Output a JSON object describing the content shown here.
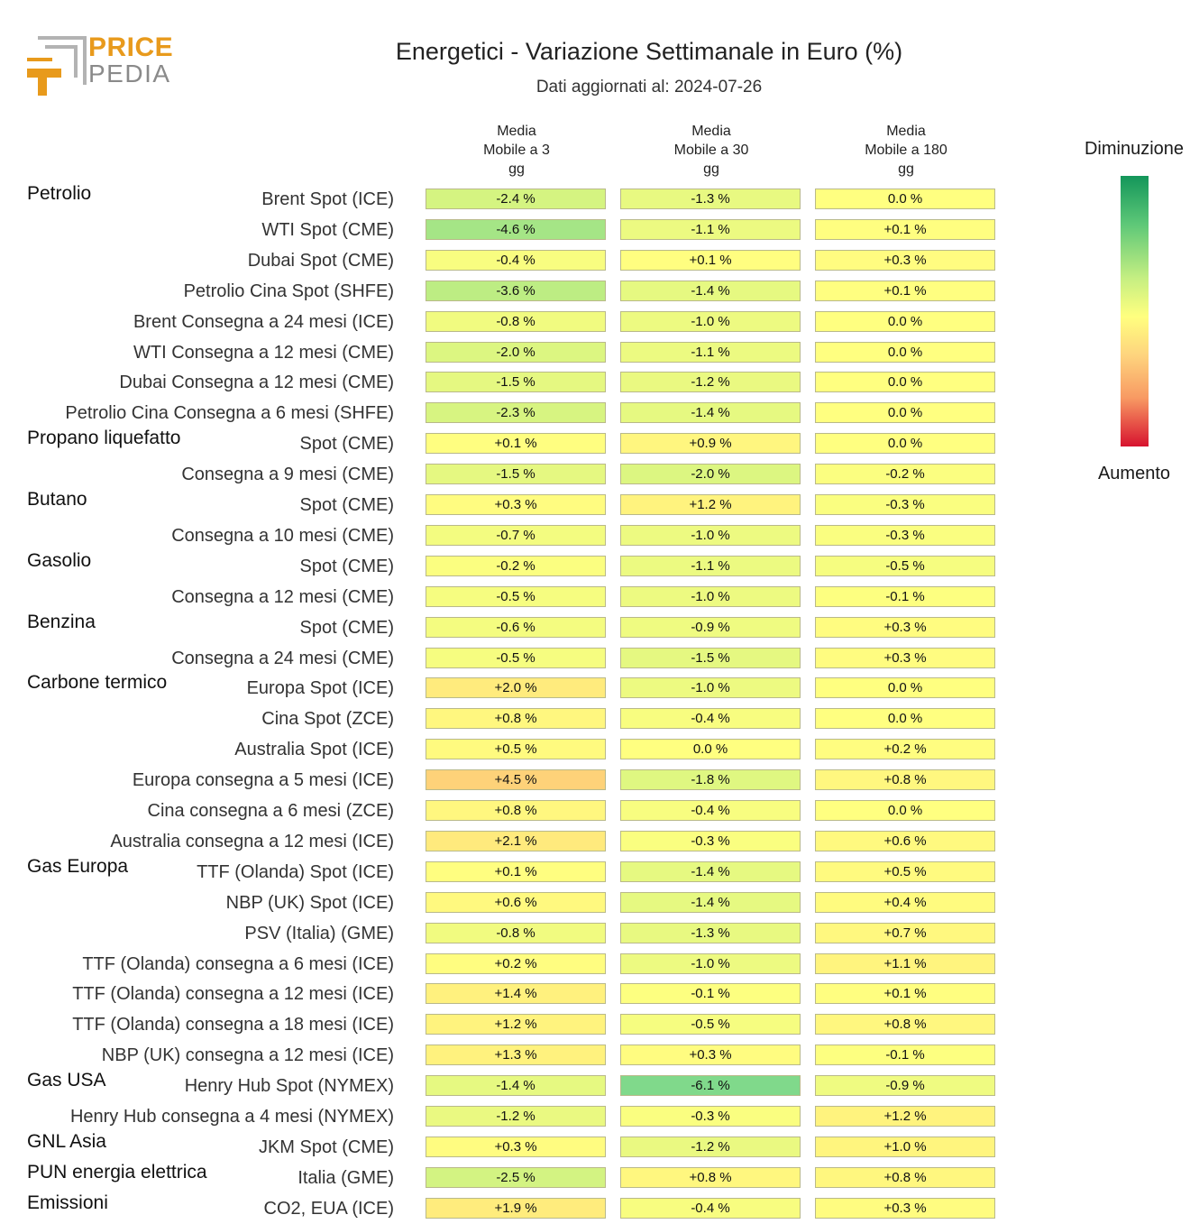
{
  "brand": {
    "word1": "PRICE",
    "word2": "PEDIA"
  },
  "chart_data": {
    "type": "heatmap",
    "title": "Energetici - Variazione Settimanale in Euro (%)",
    "subtitle": "Dati aggiornati al: 2024-07-26",
    "columns": [
      "Media\nMobile a 3\ngg",
      "Media\nMobile a 30\ngg",
      "Media\nMobile a 180\ngg"
    ],
    "legend": {
      "top": "Diminuzione",
      "bottom": "Aumento"
    },
    "rows": [
      {
        "group": "Petrolio",
        "label": "Brent Spot (ICE)",
        "values": [
          -2.4,
          -1.3,
          0.0
        ],
        "text": [
          "-2.4 %",
          "-1.3 %",
          "0.0 %"
        ]
      },
      {
        "group": "",
        "label": "WTI Spot (CME)",
        "values": [
          -4.6,
          -1.1,
          0.1
        ],
        "text": [
          "-4.6 %",
          "-1.1 %",
          "+0.1 %"
        ]
      },
      {
        "group": "",
        "label": "Dubai Spot (CME)",
        "values": [
          -0.4,
          0.1,
          0.3
        ],
        "text": [
          "-0.4 %",
          "+0.1 %",
          "+0.3 %"
        ]
      },
      {
        "group": "",
        "label": "Petrolio Cina Spot (SHFE)",
        "values": [
          -3.6,
          -1.4,
          0.1
        ],
        "text": [
          "-3.6 %",
          "-1.4 %",
          "+0.1 %"
        ]
      },
      {
        "group": "",
        "label": "Brent Consegna a 24 mesi (ICE)",
        "values": [
          -0.8,
          -1.0,
          0.0
        ],
        "text": [
          "-0.8 %",
          "-1.0 %",
          "0.0 %"
        ]
      },
      {
        "group": "",
        "label": "WTI Consegna a 12 mesi (CME)",
        "values": [
          -2.0,
          -1.1,
          0.0
        ],
        "text": [
          "-2.0 %",
          "-1.1 %",
          "0.0 %"
        ]
      },
      {
        "group": "",
        "label": "Dubai Consegna a 12 mesi (CME)",
        "values": [
          -1.5,
          -1.2,
          0.0
        ],
        "text": [
          "-1.5 %",
          "-1.2 %",
          "0.0 %"
        ]
      },
      {
        "group": "",
        "label": "Petrolio Cina Consegna a 6 mesi (SHFE)",
        "values": [
          -2.3,
          -1.4,
          0.0
        ],
        "text": [
          "-2.3 %",
          "-1.4 %",
          "0.0 %"
        ]
      },
      {
        "group": "Propano liquefatto",
        "label": "Spot (CME)",
        "values": [
          0.1,
          0.9,
          0.0
        ],
        "text": [
          "+0.1 %",
          "+0.9 %",
          "0.0 %"
        ]
      },
      {
        "group": "",
        "label": "Consegna a 9 mesi (CME)",
        "values": [
          -1.5,
          -2.0,
          -0.2
        ],
        "text": [
          "-1.5 %",
          "-2.0 %",
          "-0.2 %"
        ]
      },
      {
        "group": "Butano",
        "label": "Spot (CME)",
        "values": [
          0.3,
          1.2,
          -0.3
        ],
        "text": [
          "+0.3 %",
          "+1.2 %",
          "-0.3 %"
        ]
      },
      {
        "group": "",
        "label": "Consegna a 10 mesi (CME)",
        "values": [
          -0.7,
          -1.0,
          -0.3
        ],
        "text": [
          "-0.7 %",
          "-1.0 %",
          "-0.3 %"
        ]
      },
      {
        "group": "Gasolio",
        "label": "Spot (CME)",
        "values": [
          -0.2,
          -1.1,
          -0.5
        ],
        "text": [
          "-0.2 %",
          "-1.1 %",
          "-0.5 %"
        ]
      },
      {
        "group": "",
        "label": "Consegna a 12 mesi (CME)",
        "values": [
          -0.5,
          -1.0,
          -0.1
        ],
        "text": [
          "-0.5 %",
          "-1.0 %",
          "-0.1 %"
        ]
      },
      {
        "group": "Benzina",
        "label": "Spot (CME)",
        "values": [
          -0.6,
          -0.9,
          0.3
        ],
        "text": [
          "-0.6 %",
          "-0.9 %",
          "+0.3 %"
        ]
      },
      {
        "group": "",
        "label": "Consegna a 24 mesi (CME)",
        "values": [
          -0.5,
          -1.5,
          0.3
        ],
        "text": [
          "-0.5 %",
          "-1.5 %",
          "+0.3 %"
        ]
      },
      {
        "group": "Carbone termico",
        "label": "Europa Spot (ICE)",
        "values": [
          2.0,
          -1.0,
          0.0
        ],
        "text": [
          "+2.0 %",
          "-1.0 %",
          "0.0 %"
        ]
      },
      {
        "group": "",
        "label": "Cina Spot (ZCE)",
        "values": [
          0.8,
          -0.4,
          0.0
        ],
        "text": [
          "+0.8 %",
          "-0.4 %",
          "0.0 %"
        ]
      },
      {
        "group": "",
        "label": "Australia Spot (ICE)",
        "values": [
          0.5,
          0.0,
          0.2
        ],
        "text": [
          "+0.5 %",
          "0.0 %",
          "+0.2 %"
        ]
      },
      {
        "group": "",
        "label": "Europa consegna a 5 mesi (ICE)",
        "values": [
          4.5,
          -1.8,
          0.8
        ],
        "text": [
          "+4.5 %",
          "-1.8 %",
          "+0.8 %"
        ]
      },
      {
        "group": "",
        "label": "Cina consegna a 6 mesi (ZCE)",
        "values": [
          0.8,
          -0.4,
          0.0
        ],
        "text": [
          "+0.8 %",
          "-0.4 %",
          "0.0 %"
        ]
      },
      {
        "group": "",
        "label": "Australia consegna a 12 mesi (ICE)",
        "values": [
          2.1,
          -0.3,
          0.6
        ],
        "text": [
          "+2.1 %",
          "-0.3 %",
          "+0.6 %"
        ]
      },
      {
        "group": "Gas Europa",
        "label": "TTF (Olanda) Spot (ICE)",
        "values": [
          0.1,
          -1.4,
          0.5
        ],
        "text": [
          "+0.1 %",
          "-1.4 %",
          "+0.5 %"
        ]
      },
      {
        "group": "",
        "label": "NBP (UK) Spot (ICE)",
        "values": [
          0.6,
          -1.4,
          0.4
        ],
        "text": [
          "+0.6 %",
          "-1.4 %",
          "+0.4 %"
        ]
      },
      {
        "group": "",
        "label": "PSV (Italia) (GME)",
        "values": [
          -0.8,
          -1.3,
          0.7
        ],
        "text": [
          "-0.8 %",
          "-1.3 %",
          "+0.7 %"
        ]
      },
      {
        "group": "",
        "label": "TTF (Olanda) consegna a 6 mesi (ICE)",
        "values": [
          0.2,
          -1.0,
          1.1
        ],
        "text": [
          "+0.2 %",
          "-1.0 %",
          "+1.1 %"
        ]
      },
      {
        "group": "",
        "label": "TTF (Olanda) consegna a 12 mesi (ICE)",
        "values": [
          1.4,
          -0.1,
          0.1
        ],
        "text": [
          "+1.4 %",
          "-0.1 %",
          "+0.1 %"
        ]
      },
      {
        "group": "",
        "label": "TTF (Olanda) consegna a 18 mesi (ICE)",
        "values": [
          1.2,
          -0.5,
          0.8
        ],
        "text": [
          "+1.2 %",
          "-0.5 %",
          "+0.8 %"
        ]
      },
      {
        "group": "",
        "label": "NBP (UK) consegna a 12 mesi (ICE)",
        "values": [
          1.3,
          0.3,
          -0.1
        ],
        "text": [
          "+1.3 %",
          "+0.3 %",
          "-0.1 %"
        ]
      },
      {
        "group": "Gas USA",
        "label": "Henry Hub Spot (NYMEX)",
        "values": [
          -1.4,
          -6.1,
          -0.9
        ],
        "text": [
          "-1.4 %",
          "-6.1 %",
          "-0.9 %"
        ]
      },
      {
        "group": "",
        "label": "Henry Hub consegna a 4 mesi (NYMEX)",
        "values": [
          -1.2,
          -0.3,
          1.2
        ],
        "text": [
          "-1.2 %",
          "-0.3 %",
          "+1.2 %"
        ]
      },
      {
        "group": "GNL Asia",
        "label": "JKM Spot (CME)",
        "values": [
          0.3,
          -1.2,
          1.0
        ],
        "text": [
          "+0.3 %",
          "-1.2 %",
          "+1.0 %"
        ]
      },
      {
        "group": "PUN energia elettrica",
        "label": "Italia (GME)",
        "values": [
          -2.5,
          0.8,
          0.8
        ],
        "text": [
          "-2.5 %",
          "+0.8 %",
          "+0.8 %"
        ]
      },
      {
        "group": "Emissioni",
        "label": "CO2, EUA (ICE)",
        "values": [
          1.9,
          -0.4,
          0.3
        ],
        "text": [
          "+1.9 %",
          "-0.4 %",
          "+0.3 %"
        ]
      }
    ]
  }
}
